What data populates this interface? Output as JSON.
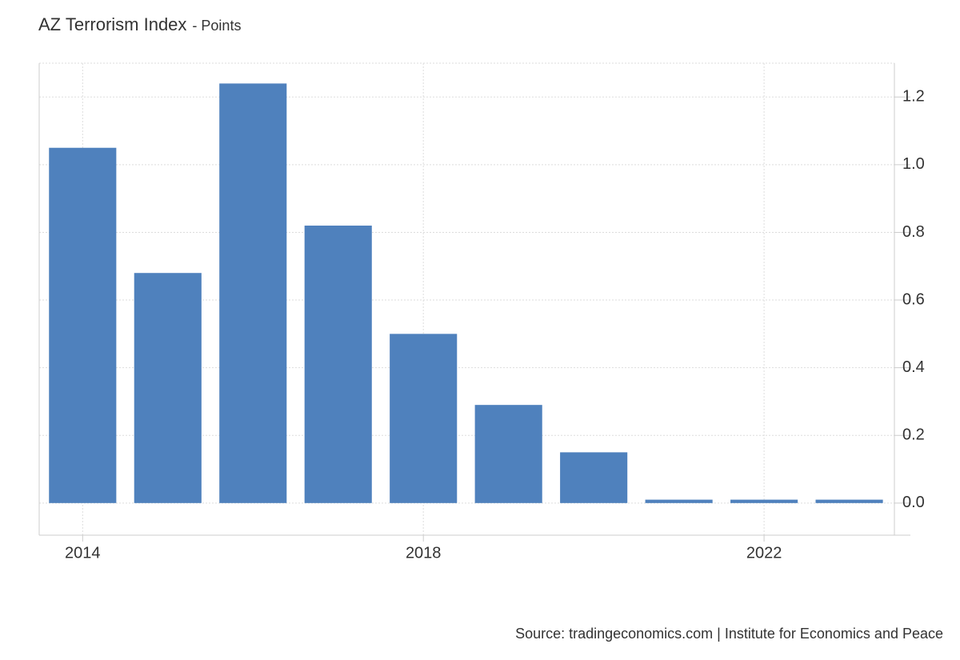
{
  "chart_data": {
    "type": "bar",
    "title": "AZ Terrorism Index",
    "subtitle": "- Points",
    "source": "Source: tradingeconomics.com | Institute for Economics and Peace",
    "x": [
      2014,
      2015,
      2016,
      2017,
      2018,
      2019,
      2020,
      2021,
      2022,
      2023
    ],
    "values": [
      1.05,
      0.68,
      1.24,
      0.82,
      0.5,
      0.29,
      0.15,
      0.01,
      0.01,
      0.01
    ],
    "color": "#4f81bd",
    "xlim": [
      2013.49,
      2023.53
    ],
    "xticks": [
      2014,
      2018,
      2022
    ],
    "ylim": [
      -0.095,
      1.3
    ],
    "yticks": [
      {
        "value": 0,
        "label": "0.0"
      },
      0.2,
      0.4,
      0.6,
      0.8,
      {
        "value": 1,
        "label": "1.0"
      },
      1.2
    ],
    "grid": true
  }
}
